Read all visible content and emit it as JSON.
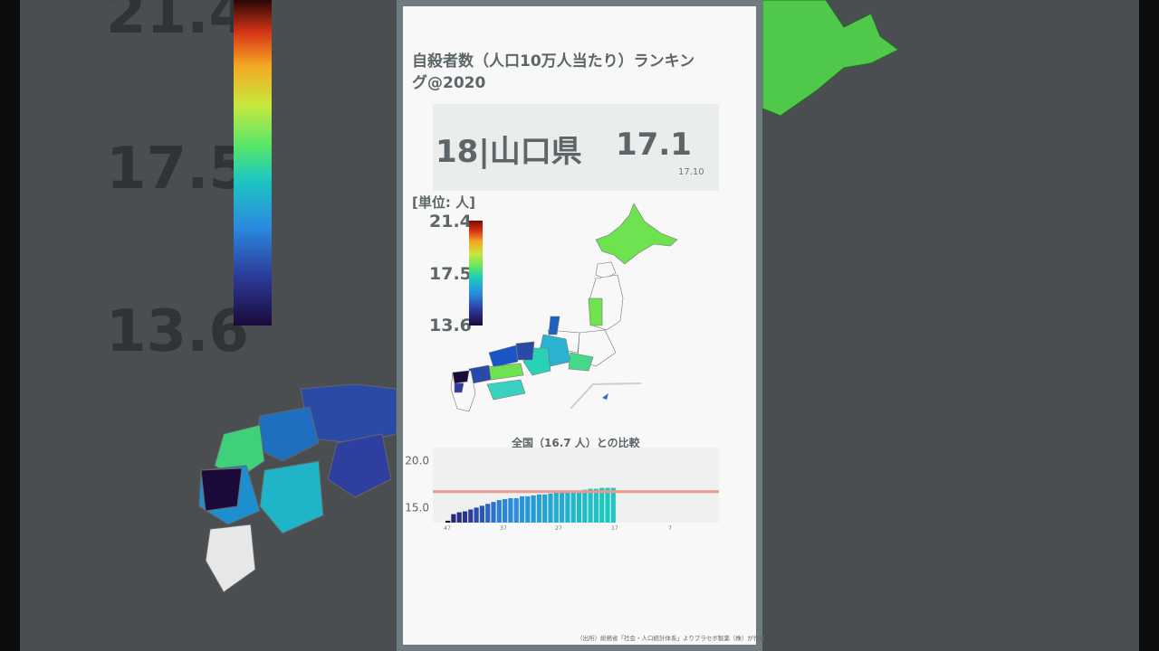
{
  "title": "自殺者数（人口10万人当たり）ランキング@2020",
  "rank": {
    "main": "18|山口県",
    "value": "17.1",
    "sub": "17.10"
  },
  "unit_label": "[単位: 人]",
  "colorbar": {
    "max": "21.4",
    "mid": "17.5",
    "min": "13.6"
  },
  "background": {
    "label_top": "21.4",
    "label_mid": "17.5",
    "label_bottom": "13.6"
  },
  "chart_title": "全国（16.7 人）との比較",
  "source": "（出所）総務省「社会・人口統計体系」よりプラセボ製薬（株）が作成",
  "colors": {
    "reference_line": "#f2958a",
    "card": "#f7f8f7"
  },
  "chart_data": {
    "type": "bar",
    "title": "全国（16.7 人）との比較",
    "ylim": [
      13.4,
      21.4
    ],
    "reference_line": 16.7,
    "yticks": [
      "20.0",
      "15.0"
    ],
    "xticks": [
      "47",
      "37",
      "27",
      "17",
      "7"
    ],
    "values": [
      13.6,
      14.3,
      14.5,
      14.6,
      14.8,
      15.0,
      15.2,
      15.4,
      15.6,
      15.8,
      15.9,
      16.0,
      16.0,
      16.2,
      16.2,
      16.3,
      16.4,
      16.4,
      16.5,
      16.6,
      16.6,
      16.7,
      16.8,
      16.8,
      16.9,
      17.0,
      17.0,
      17.1,
      17.1,
      17.1
    ]
  }
}
